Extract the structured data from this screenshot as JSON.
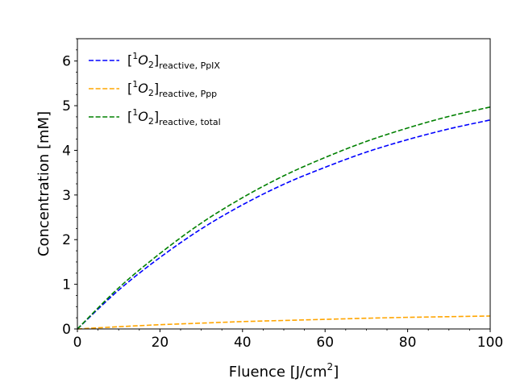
{
  "chart_data": {
    "type": "line",
    "xlabel": "Fluence [J/cm",
    "xlabel_sup": "2",
    "xlabel_end": "]",
    "ylabel": "Concentration [mM]",
    "xlim": [
      0,
      100
    ],
    "ylim": [
      0,
      6.5
    ],
    "xticks": [
      "0",
      "20",
      "40",
      "60",
      "80",
      "100"
    ],
    "yticks": [
      "0",
      "1",
      "2",
      "3",
      "4",
      "5",
      "6"
    ],
    "x_tick_values": [
      0,
      20,
      40,
      60,
      80,
      100
    ],
    "y_tick_values": [
      0,
      1,
      2,
      3,
      4,
      5,
      6
    ],
    "grid": false,
    "legend_position": "top-left",
    "legend_label_prefix": "[",
    "legend_label_sup": "1",
    "legend_label_mid": "O",
    "legend_label_sub2": "2",
    "legend_label_close": "]",
    "x": [
      0,
      10,
      20,
      30,
      40,
      50,
      60,
      70,
      80,
      90,
      100
    ],
    "series": [
      {
        "name": "reactive, PpIX",
        "color": "#0000ff",
        "dash": "dashed",
        "values": [
          0,
          0.87,
          1.6,
          2.24,
          2.78,
          3.24,
          3.62,
          3.96,
          4.24,
          4.48,
          4.68
        ]
      },
      {
        "name": "reactive, Ppp",
        "color": "#ffa500",
        "dash": "dashed",
        "values": [
          0,
          0.05,
          0.095,
          0.13,
          0.165,
          0.19,
          0.215,
          0.24,
          0.26,
          0.275,
          0.29
        ]
      },
      {
        "name": "reactive, total",
        "color": "#008000",
        "dash": "dashed",
        "values": [
          0,
          0.92,
          1.69,
          2.37,
          2.94,
          3.43,
          3.84,
          4.2,
          4.5,
          4.76,
          4.97
        ]
      }
    ]
  }
}
